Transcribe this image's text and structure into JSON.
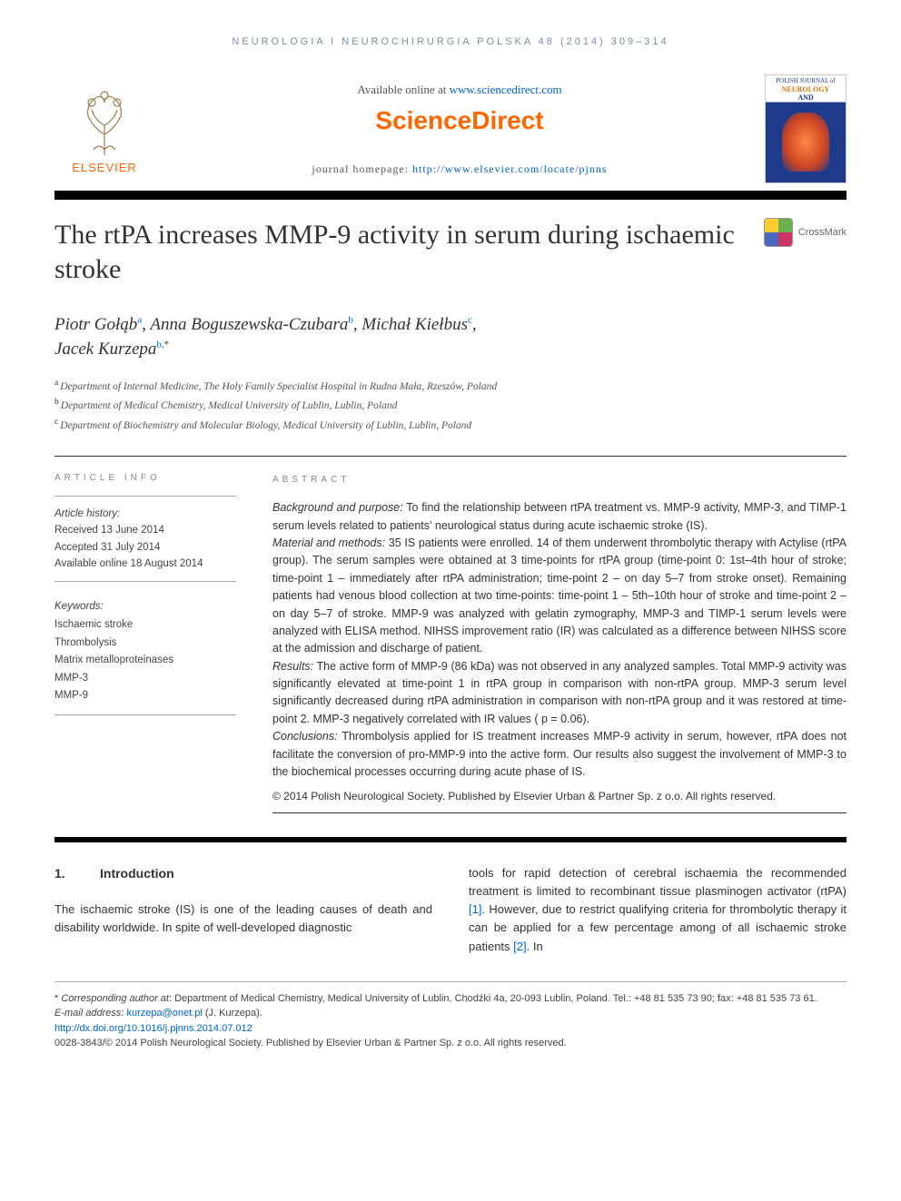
{
  "running_head": "NEUROLOGIA I NEUROCHIRURGIA POLSKA 48 (2014) 309–314",
  "masthead": {
    "publisher_name": "ELSEVIER",
    "available_text_prefix": "Available online at ",
    "available_url": "www.sciencedirect.com",
    "sd_logo_text": "ScienceDirect",
    "journal_home_prefix": "journal homepage: ",
    "journal_home_url": "http://www.elsevier.com/locate/pjnns",
    "cover_small1": "POLISH JOURNAL of",
    "cover_small2": "NEUROLOGY",
    "cover_small3": "AND NEUROSURGERY"
  },
  "title": "The rtPA increases MMP-9 activity in serum during ischaemic stroke",
  "crossmark_label": "CrossMark",
  "authors": [
    {
      "name": "Piotr Gołąb",
      "aff": "a"
    },
    {
      "name": "Anna Boguszewska-Czubara",
      "aff": "b"
    },
    {
      "name": "Michał Kiełbus",
      "aff": "c"
    },
    {
      "name": "Jacek Kurzepa",
      "aff": "b,",
      "corr": "*"
    }
  ],
  "affiliations": [
    {
      "sup": "a",
      "text": "Department of Internal Medicine, The Holy Family Specialist Hospital in Rudna Mała, Rzeszów, Poland"
    },
    {
      "sup": "b",
      "text": "Department of Medical Chemistry, Medical University of Lublin, Lublin, Poland"
    },
    {
      "sup": "c",
      "text": "Department of Biochemistry and Molecular Biology, Medical University of Lublin, Lublin, Poland"
    }
  ],
  "article_info_label": "ARTICLE INFO",
  "history": {
    "title": "Article history:",
    "received": "Received 13 June 2014",
    "accepted": "Accepted 31 July 2014",
    "online": "Available online 18 August 2014"
  },
  "keywords": {
    "title": "Keywords:",
    "items": [
      "Ischaemic stroke",
      "Thrombolysis",
      "Matrix metalloproteinases",
      "MMP-3",
      "MMP-9"
    ]
  },
  "abstract_label": "ABSTRACT",
  "abstract": {
    "bg_label": "Background and purpose:",
    "bg_text": " To find the relationship between rtPA treatment vs. MMP-9 activity, MMP-3, and TIMP-1 serum levels related to patients' neurological status during acute ischaemic stroke (IS).",
    "mm_label": "Material and methods:",
    "mm_text": " 35 IS patients were enrolled. 14 of them underwent thrombolytic therapy with Actylise (rtPA group). The serum samples were obtained at 3 time-points for rtPA group (time-point 0: 1st–4th hour of stroke; time-point 1 – immediately after rtPA administration; time-point 2 – on day 5–7 from stroke onset). Remaining patients had venous blood collection at two time-points: time-point 1 – 5th–10th hour of stroke and time-point 2 – on day 5–7 of stroke. MMP-9 was analyzed with gelatin zymography, MMP-3 and TIMP-1 serum levels were analyzed with ELISA method. NIHSS improvement ratio (IR) was calculated as a difference between NIHSS score at the admission and discharge of patient.",
    "res_label": "Results:",
    "res_text": " The active form of MMP-9 (86 kDa) was not observed in any analyzed samples. Total MMP-9 activity was significantly elevated at time-point 1 in rtPA group in comparison with non-rtPA group. MMP-3 serum level significantly decreased during rtPA administration in comparison with non-rtPA group and it was restored at time-point 2. MMP-3 negatively correlated with IR values ( p = 0.06).",
    "con_label": "Conclusions:",
    "con_text": " Thrombolysis applied for IS treatment increases MMP-9 activity in serum, however, rtPA does not facilitate the conversion of pro-MMP-9 into the active form. Our results also suggest the involvement of MMP-3 to the biochemical processes occurring during acute phase of IS.",
    "copyright": "© 2014 Polish Neurological Society. Published by Elsevier Urban & Partner Sp. z o.o. All rights reserved."
  },
  "body": {
    "sec_num": "1.",
    "sec_title": "Introduction",
    "col1": "The ischaemic stroke (IS) is one of the leading causes of death and disability worldwide. In spite of well-developed diagnostic",
    "col2_a": "tools for rapid detection of cerebral ischaemia the recommended treatment is limited to recombinant tissue plasminogen activator (rtPA) ",
    "ref1": "[1]",
    "col2_b": ". However, due to restrict qualifying criteria for thrombolytic therapy it can be applied for a few percentage among of all ischaemic stroke patients ",
    "ref2": "[2]",
    "col2_c": ". In"
  },
  "footnotes": {
    "corr_label": "* ",
    "corr_prefix": "Corresponding author at",
    "corr_text": ": Department of Medical Chemistry, Medical University of Lublin, Chodźki 4a, 20-093 Lublin, Poland. Tel.: +48 81 535 73 90; fax: +48 81 535 73 61.",
    "email_label": "E-mail address: ",
    "email": "kurzepa@onet.pl",
    "email_suffix": " (J. Kurzepa).",
    "doi": "http://dx.doi.org/10.1016/j.pjnns.2014.07.012",
    "issn_line": "0028-3843/© 2014 Polish Neurological Society. Published by Elsevier Urban & Partner Sp. z o.o. All rights reserved."
  },
  "colors": {
    "link": "#0066cc",
    "orange": "#ff6600",
    "grayblue": "#7a8fa6"
  }
}
